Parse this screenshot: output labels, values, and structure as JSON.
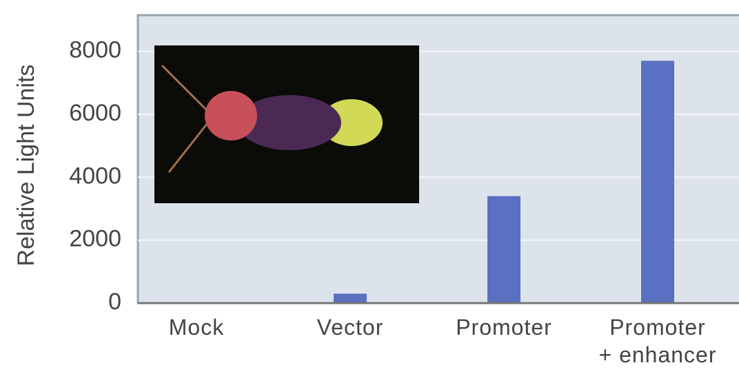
{
  "chart_data": {
    "type": "bar",
    "y_label": "Relative Light Units",
    "categories": [
      "Mock",
      "Vector",
      "Promoter",
      "Promoter + enhancer"
    ],
    "values": [
      0,
      300,
      3400,
      7700
    ],
    "color": "#5a70c0",
    "ylim": [
      0,
      9150
    ],
    "yticks": [
      0,
      2000,
      4000,
      6000,
      8000
    ],
    "grid": true
  }
}
